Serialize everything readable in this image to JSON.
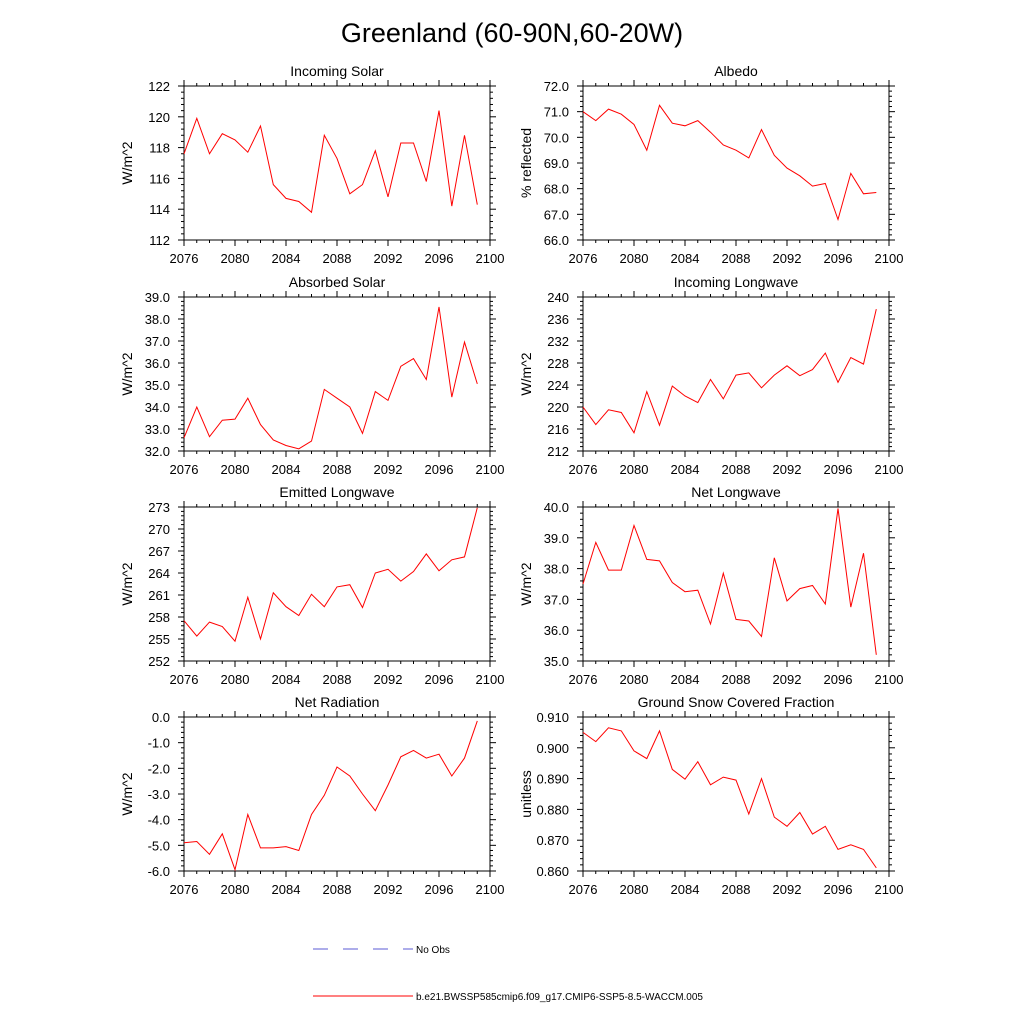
{
  "figure": {
    "title": "Greenland (60-90N,60-20W)",
    "legend": [
      {
        "label": "No Obs",
        "color": "#5b5bd6",
        "style": "dashed"
      },
      {
        "label": "b.e21.BWSSP585cmip6.f09_g17.CMIP6-SSP5-8.5-WACCM.005",
        "color": "#ff0000",
        "style": "solid"
      }
    ]
  },
  "chart_data": [
    {
      "type": "line",
      "title": "Incoming Solar",
      "ylabel": "W/m^2",
      "xlim": [
        2076,
        2100
      ],
      "ylim": [
        112,
        122
      ],
      "xticks": [
        "2076",
        "2080",
        "2084",
        "2088",
        "2092",
        "2096",
        "2100"
      ],
      "yticks": [
        "112",
        "114",
        "116",
        "118",
        "120",
        "122"
      ],
      "series": [
        {
          "name": "b.e21.BWSSP585cmip6.f09_g17.CMIP6-SSP5-8.5-WACCM.005",
          "color": "#ff0000",
          "x": [
            2076,
            2077,
            2078,
            2079,
            2080,
            2081,
            2082,
            2083,
            2084,
            2085,
            2086,
            2087,
            2088,
            2089,
            2090,
            2091,
            2092,
            2093,
            2094,
            2095,
            2096,
            2097,
            2098,
            2099
          ],
          "values": [
            117.6,
            119.9,
            117.6,
            118.9,
            118.5,
            117.7,
            119.4,
            115.6,
            114.7,
            114.5,
            113.8,
            118.8,
            117.3,
            115.0,
            115.6,
            117.8,
            114.8,
            118.3,
            118.3,
            115.8,
            120.4,
            114.2,
            118.8,
            114.3
          ]
        }
      ]
    },
    {
      "type": "line",
      "title": "Albedo",
      "ylabel": "% reflected",
      "xlim": [
        2076,
        2100
      ],
      "ylim": [
        66.0,
        72.0
      ],
      "xticks": [
        "2076",
        "2080",
        "2084",
        "2088",
        "2092",
        "2096",
        "2100"
      ],
      "yticks": [
        "66.0",
        "67.0",
        "68.0",
        "69.0",
        "70.0",
        "71.0",
        "72.0"
      ],
      "series": [
        {
          "name": "b.e21.BWSSP585cmip6.f09_g17.CMIP6-SSP5-8.5-WACCM.005",
          "color": "#ff0000",
          "x": [
            2076,
            2077,
            2078,
            2079,
            2080,
            2081,
            2082,
            2083,
            2084,
            2085,
            2086,
            2087,
            2088,
            2089,
            2090,
            2091,
            2092,
            2093,
            2094,
            2095,
            2096,
            2097,
            2098,
            2099
          ],
          "values": [
            71.0,
            70.65,
            71.1,
            70.9,
            70.5,
            69.5,
            71.25,
            70.55,
            70.45,
            70.65,
            70.2,
            69.7,
            69.5,
            69.2,
            70.3,
            69.3,
            68.8,
            68.5,
            68.1,
            68.2,
            66.8,
            68.6,
            67.8,
            67.85
          ]
        }
      ]
    },
    {
      "type": "line",
      "title": "Absorbed Solar",
      "ylabel": "W/m^2",
      "xlim": [
        2076,
        2100
      ],
      "ylim": [
        32.0,
        39.0
      ],
      "xticks": [
        "2076",
        "2080",
        "2084",
        "2088",
        "2092",
        "2096",
        "2100"
      ],
      "yticks": [
        "32.0",
        "33.0",
        "34.0",
        "35.0",
        "36.0",
        "37.0",
        "38.0",
        "39.0"
      ],
      "series": [
        {
          "name": "b.e21.BWSSP585cmip6.f09_g17.CMIP6-SSP5-8.5-WACCM.005",
          "color": "#ff0000",
          "x": [
            2076,
            2077,
            2078,
            2079,
            2080,
            2081,
            2082,
            2083,
            2084,
            2085,
            2086,
            2087,
            2088,
            2089,
            2090,
            2091,
            2092,
            2093,
            2094,
            2095,
            2096,
            2097,
            2098,
            2099
          ],
          "values": [
            32.6,
            34.0,
            32.65,
            33.4,
            33.45,
            34.4,
            33.2,
            32.5,
            32.25,
            32.1,
            32.45,
            34.8,
            34.4,
            34.0,
            32.8,
            34.7,
            34.3,
            35.85,
            36.2,
            35.25,
            38.55,
            34.45,
            36.95,
            35.05
          ]
        }
      ]
    },
    {
      "type": "line",
      "title": "Incoming Longwave",
      "ylabel": "W/m^2",
      "xlim": [
        2076,
        2100
      ],
      "ylim": [
        212,
        240
      ],
      "xticks": [
        "2076",
        "2080",
        "2084",
        "2088",
        "2092",
        "2096",
        "2100"
      ],
      "yticks": [
        "212",
        "216",
        "220",
        "224",
        "228",
        "232",
        "236",
        "240"
      ],
      "series": [
        {
          "name": "b.e21.BWSSP585cmip6.f09_g17.CMIP6-SSP5-8.5-WACCM.005",
          "color": "#ff0000",
          "x": [
            2076,
            2077,
            2078,
            2079,
            2080,
            2081,
            2082,
            2083,
            2084,
            2085,
            2086,
            2087,
            2088,
            2089,
            2090,
            2091,
            2092,
            2093,
            2094,
            2095,
            2096,
            2097,
            2098,
            2099
          ],
          "values": [
            220.0,
            216.8,
            219.5,
            219.0,
            215.3,
            222.8,
            216.7,
            223.8,
            222.0,
            220.8,
            225.0,
            221.5,
            225.8,
            226.2,
            223.5,
            225.8,
            227.5,
            225.7,
            226.8,
            229.8,
            224.5,
            229.0,
            227.8,
            237.8
          ]
        }
      ]
    },
    {
      "type": "line",
      "title": "Emitted Longwave",
      "ylabel": "W/m^2",
      "xlim": [
        2076,
        2100
      ],
      "ylim": [
        252,
        273
      ],
      "xticks": [
        "2076",
        "2080",
        "2084",
        "2088",
        "2092",
        "2096",
        "2100"
      ],
      "yticks": [
        "252",
        "255",
        "258",
        "261",
        "264",
        "267",
        "270",
        "273"
      ],
      "series": [
        {
          "name": "b.e21.BWSSP585cmip6.f09_g17.CMIP6-SSP5-8.5-WACCM.005",
          "color": "#ff0000",
          "x": [
            2076,
            2077,
            2078,
            2079,
            2080,
            2081,
            2082,
            2083,
            2084,
            2085,
            2086,
            2087,
            2088,
            2089,
            2090,
            2091,
            2092,
            2093,
            2094,
            2095,
            2096,
            2097,
            2098,
            2099
          ],
          "values": [
            257.5,
            255.4,
            257.3,
            256.7,
            254.7,
            260.7,
            255.0,
            261.3,
            259.4,
            258.2,
            261.1,
            259.4,
            262.1,
            262.4,
            259.3,
            264.0,
            264.5,
            262.9,
            264.2,
            266.6,
            264.3,
            265.8,
            266.2,
            272.9
          ]
        }
      ]
    },
    {
      "type": "line",
      "title": "Net Longwave",
      "ylabel": "W/m^2",
      "xlim": [
        2076,
        2100
      ],
      "ylim": [
        35.0,
        40.0
      ],
      "xticks": [
        "2076",
        "2080",
        "2084",
        "2088",
        "2092",
        "2096",
        "2100"
      ],
      "yticks": [
        "35.0",
        "36.0",
        "37.0",
        "38.0",
        "39.0",
        "40.0"
      ],
      "series": [
        {
          "name": "b.e21.BWSSP585cmip6.f09_g17.CMIP6-SSP5-8.5-WACCM.005",
          "color": "#ff0000",
          "x": [
            2076,
            2077,
            2078,
            2079,
            2080,
            2081,
            2082,
            2083,
            2084,
            2085,
            2086,
            2087,
            2088,
            2089,
            2090,
            2091,
            2092,
            2093,
            2094,
            2095,
            2096,
            2097,
            2098,
            2099
          ],
          "values": [
            37.5,
            38.85,
            37.95,
            37.95,
            39.4,
            38.3,
            38.25,
            37.55,
            37.25,
            37.3,
            36.2,
            37.85,
            36.35,
            36.3,
            35.8,
            38.35,
            36.95,
            37.35,
            37.45,
            36.85,
            39.95,
            36.75,
            38.5,
            35.2
          ]
        }
      ]
    },
    {
      "type": "line",
      "title": "Net Radiation",
      "ylabel": "W/m^2",
      "xlim": [
        2076,
        2100
      ],
      "ylim": [
        -6.0,
        0.0
      ],
      "xticks": [
        "2076",
        "2080",
        "2084",
        "2088",
        "2092",
        "2096",
        "2100"
      ],
      "yticks": [
        "-6.0",
        "-5.0",
        "-4.0",
        "-3.0",
        "-2.0",
        "-1.0",
        "0.0"
      ],
      "series": [
        {
          "name": "b.e21.BWSSP585cmip6.f09_g17.CMIP6-SSP5-8.5-WACCM.005",
          "color": "#ff0000",
          "x": [
            2076,
            2077,
            2078,
            2079,
            2080,
            2081,
            2082,
            2083,
            2084,
            2085,
            2086,
            2087,
            2088,
            2089,
            2090,
            2091,
            2092,
            2093,
            2094,
            2095,
            2096,
            2097,
            2098,
            2099
          ],
          "values": [
            -4.9,
            -4.85,
            -5.35,
            -4.55,
            -5.95,
            -3.8,
            -5.1,
            -5.1,
            -5.05,
            -5.2,
            -3.8,
            -3.05,
            -1.95,
            -2.3,
            -3.0,
            -3.65,
            -2.65,
            -1.55,
            -1.3,
            -1.6,
            -1.45,
            -2.3,
            -1.6,
            -0.15
          ]
        }
      ]
    },
    {
      "type": "line",
      "title": "Ground Snow Covered Fraction",
      "ylabel": "unitless",
      "xlim": [
        2076,
        2100
      ],
      "ylim": [
        0.86,
        0.91
      ],
      "xticks": [
        "2076",
        "2080",
        "2084",
        "2088",
        "2092",
        "2096",
        "2100"
      ],
      "yticks": [
        "0.860",
        "0.870",
        "0.880",
        "0.890",
        "0.900",
        "0.910"
      ],
      "series": [
        {
          "name": "b.e21.BWSSP585cmip6.f09_g17.CMIP6-SSP5-8.5-WACCM.005",
          "color": "#ff0000",
          "x": [
            2076,
            2077,
            2078,
            2079,
            2080,
            2081,
            2082,
            2083,
            2084,
            2085,
            2086,
            2087,
            2088,
            2089,
            2090,
            2091,
            2092,
            2093,
            2094,
            2095,
            2096,
            2097,
            2098,
            2099
          ],
          "values": [
            0.905,
            0.902,
            0.9065,
            0.9055,
            0.899,
            0.8965,
            0.9055,
            0.893,
            0.8898,
            0.8955,
            0.888,
            0.8905,
            0.8895,
            0.8785,
            0.89,
            0.8775,
            0.8745,
            0.879,
            0.872,
            0.8745,
            0.867,
            0.8685,
            0.867,
            0.861
          ]
        }
      ]
    }
  ]
}
